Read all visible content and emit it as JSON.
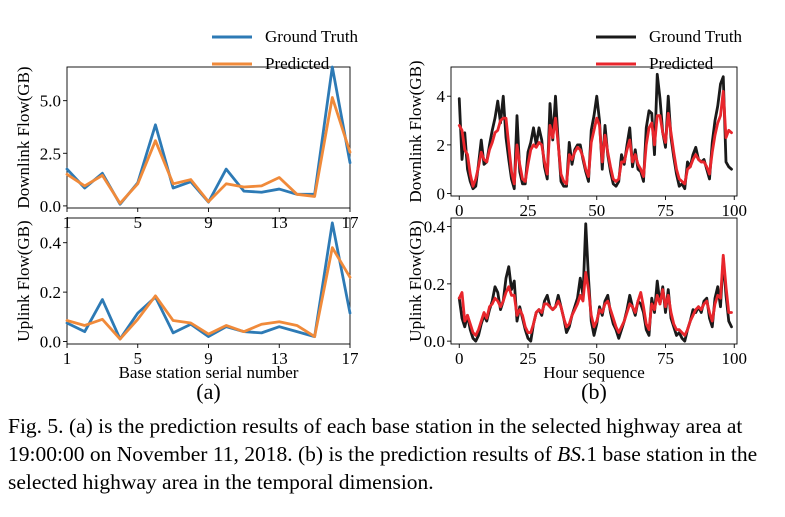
{
  "caption": {
    "label": "Fig. 5.",
    "text_1": "(a) is the prediction results of each base station in the selected highway area at 19:00:00 on November 11, 2018. (b) is the prediction results of",
    "math": "BS.",
    "math_num": "1",
    "text_2": "base station in the selected highway area in the temporal dimension."
  },
  "colors": {
    "gt_a": "#2d7ab5",
    "pred_a": "#f08a3a",
    "gt_b": "#1a1a1a",
    "pred_b": "#e8262c"
  },
  "chart_data": [
    {
      "id": "a-top",
      "type": "line",
      "ylabel": "Downlink Flow(GB)",
      "xlabel": "",
      "xlim": [
        1,
        17
      ],
      "ylim": [
        -0.1,
        6.6
      ],
      "xticks": [
        "1",
        "5",
        "9",
        "13",
        "17"
      ],
      "yticks": [
        "0.0",
        "2.5",
        "5.0"
      ],
      "legend": {
        "position": "top-right-outside",
        "entries": [
          "Ground Truth",
          "Predicted"
        ]
      },
      "x": [
        1,
        2,
        3,
        4,
        5,
        6,
        7,
        8,
        9,
        10,
        11,
        12,
        13,
        14,
        15,
        16,
        17
      ],
      "series": [
        {
          "name": "Ground Truth",
          "color_key": "gt_a",
          "values": [
            1.75,
            0.85,
            1.55,
            0.08,
            1.1,
            3.85,
            0.85,
            1.15,
            0.18,
            1.75,
            0.7,
            0.65,
            0.8,
            0.55,
            0.55,
            6.6,
            2.05
          ]
        },
        {
          "name": "Predicted",
          "color_key": "pred_a",
          "values": [
            1.5,
            0.95,
            1.45,
            0.12,
            1.05,
            3.1,
            1.05,
            1.25,
            0.2,
            1.05,
            0.9,
            0.95,
            1.35,
            0.55,
            0.45,
            5.15,
            2.55
          ]
        }
      ]
    },
    {
      "id": "a-bottom",
      "type": "line",
      "ylabel": "Uplink Flow(GB)",
      "xlabel": "Base station serial number",
      "panel_label": "(a)",
      "xlim": [
        1,
        17
      ],
      "ylim": [
        -0.01,
        0.5
      ],
      "xticks": [
        "1",
        "5",
        "9",
        "13",
        "17"
      ],
      "yticks": [
        "0.0",
        "0.2",
        "0.4"
      ],
      "x": [
        1,
        2,
        3,
        4,
        5,
        6,
        7,
        8,
        9,
        10,
        11,
        12,
        13,
        14,
        15,
        16,
        17
      ],
      "series": [
        {
          "name": "Ground Truth",
          "color_key": "gt_a",
          "values": [
            0.075,
            0.04,
            0.17,
            0.01,
            0.115,
            0.18,
            0.035,
            0.07,
            0.02,
            0.06,
            0.04,
            0.035,
            0.06,
            0.04,
            0.02,
            0.48,
            0.115
          ]
        },
        {
          "name": "Predicted",
          "color_key": "pred_a",
          "values": [
            0.085,
            0.065,
            0.09,
            0.01,
            0.09,
            0.185,
            0.085,
            0.075,
            0.03,
            0.065,
            0.04,
            0.07,
            0.08,
            0.065,
            0.02,
            0.38,
            0.26
          ]
        }
      ]
    },
    {
      "id": "b-top",
      "type": "line",
      "ylabel": "Downlink Flow(GB)",
      "xlabel": "",
      "xlim": [
        -3,
        101
      ],
      "ylim": [
        -0.1,
        5.2
      ],
      "xticks": [
        "0",
        "25",
        "50",
        "75",
        "100"
      ],
      "yticks": [
        "0",
        "2",
        "4"
      ],
      "legend": {
        "position": "top-right-outside",
        "entries": [
          "Ground Truth",
          "Predicted"
        ]
      },
      "x_start": 0,
      "x_step": 1,
      "series": [
        {
          "name": "Ground Truth",
          "color_key": "gt_b",
          "values": [
            3.9,
            1.4,
            2.5,
            1.0,
            0.5,
            0.2,
            0.3,
            1.2,
            2.2,
            1.2,
            1.3,
            2.0,
            2.6,
            3.1,
            3.8,
            2.9,
            4.0,
            2.3,
            1.4,
            0.6,
            0.2,
            3.2,
            0.9,
            0.4,
            0.4,
            1.7,
            2.1,
            2.7,
            2.0,
            2.7,
            2.2,
            1.1,
            0.6,
            3.7,
            2.2,
            4.0,
            2.1,
            0.5,
            0.3,
            0.3,
            2.1,
            1.2,
            1.8,
            2.0,
            2.0,
            1.4,
            0.9,
            0.5,
            2.6,
            3.2,
            4.0,
            3.0,
            1.0,
            2.8,
            1.6,
            0.9,
            0.4,
            0.3,
            0.5,
            1.6,
            1.2,
            2.0,
            2.7,
            1.1,
            1.8,
            1.0,
            0.9,
            0.5,
            2.7,
            3.4,
            3.3,
            1.6,
            4.9,
            3.9,
            2.5,
            1.9,
            4.0,
            2.3,
            1.5,
            0.8,
            0.3,
            0.4,
            0.2,
            1.3,
            1.1,
            1.6,
            1.9,
            1.4,
            1.3,
            1.4,
            1.0,
            0.6,
            2.1,
            3.0,
            3.6,
            4.5,
            4.8,
            1.3,
            1.1,
            1.0
          ]
        },
        {
          "name": "Predicted",
          "color_key": "pred_b",
          "values": [
            2.8,
            2.6,
            1.8,
            1.6,
            0.8,
            0.3,
            0.6,
            1.1,
            1.7,
            1.4,
            1.3,
            1.8,
            2.1,
            2.5,
            2.6,
            3.0,
            3.1,
            3.1,
            2.0,
            0.9,
            0.4,
            2.0,
            1.2,
            0.6,
            0.5,
            1.2,
            1.8,
            2.0,
            1.9,
            2.1,
            2.0,
            1.3,
            0.8,
            2.8,
            2.3,
            3.1,
            2.0,
            0.8,
            0.5,
            0.4,
            1.6,
            1.4,
            1.7,
            1.9,
            1.8,
            1.5,
            1.0,
            0.7,
            2.1,
            2.6,
            3.1,
            2.8,
            1.3,
            2.4,
            1.7,
            1.1,
            0.6,
            0.5,
            0.6,
            1.3,
            1.3,
            1.8,
            2.2,
            1.3,
            1.6,
            1.2,
            1.0,
            0.7,
            2.0,
            2.7,
            2.9,
            2.0,
            3.2,
            3.2,
            2.5,
            2.1,
            3.3,
            2.5,
            1.7,
            1.0,
            0.6,
            0.5,
            0.4,
            1.0,
            1.1,
            1.4,
            1.6,
            1.4,
            1.3,
            1.3,
            1.1,
            0.8,
            1.7,
            2.4,
            2.9,
            3.2,
            4.2,
            2.3,
            2.6,
            2.5
          ]
        }
      ]
    },
    {
      "id": "b-bottom",
      "type": "line",
      "ylabel": "Uplink Flow(GB)",
      "xlabel": "Hour sequence",
      "panel_label": "(b)",
      "xlim": [
        -3,
        101
      ],
      "ylim": [
        -0.01,
        0.43
      ],
      "xticks": [
        "0",
        "25",
        "50",
        "75",
        "100"
      ],
      "yticks": [
        "0.0",
        "0.2",
        "0.4"
      ],
      "x_start": 0,
      "x_step": 1,
      "series": [
        {
          "name": "Ground Truth",
          "color_key": "gt_b",
          "values": [
            0.15,
            0.08,
            0.05,
            0.09,
            0.04,
            0.01,
            0.0,
            0.02,
            0.06,
            0.09,
            0.07,
            0.11,
            0.14,
            0.19,
            0.17,
            0.11,
            0.14,
            0.22,
            0.26,
            0.18,
            0.21,
            0.07,
            0.12,
            0.08,
            0.04,
            0.01,
            0.0,
            0.06,
            0.1,
            0.11,
            0.09,
            0.14,
            0.16,
            0.12,
            0.11,
            0.12,
            0.16,
            0.12,
            0.08,
            0.03,
            0.05,
            0.09,
            0.12,
            0.15,
            0.22,
            0.16,
            0.41,
            0.22,
            0.07,
            0.02,
            0.06,
            0.12,
            0.09,
            0.14,
            0.16,
            0.1,
            0.06,
            0.04,
            0.01,
            0.04,
            0.07,
            0.11,
            0.16,
            0.12,
            0.09,
            0.14,
            0.13,
            0.1,
            0.04,
            0.02,
            0.15,
            0.1,
            0.21,
            0.13,
            0.19,
            0.1,
            0.18,
            0.08,
            0.05,
            0.02,
            0.03,
            0.01,
            0.0,
            0.04,
            0.07,
            0.11,
            0.1,
            0.12,
            0.1,
            0.14,
            0.15,
            0.08,
            0.05,
            0.15,
            0.19,
            0.12,
            0.29,
            0.16,
            0.07,
            0.05
          ]
        },
        {
          "name": "Predicted",
          "color_key": "pred_b",
          "values": [
            0.15,
            0.17,
            0.07,
            0.09,
            0.06,
            0.03,
            0.02,
            0.04,
            0.07,
            0.1,
            0.08,
            0.12,
            0.13,
            0.15,
            0.14,
            0.12,
            0.14,
            0.17,
            0.19,
            0.16,
            0.16,
            0.09,
            0.11,
            0.09,
            0.05,
            0.03,
            0.03,
            0.06,
            0.1,
            0.11,
            0.1,
            0.13,
            0.13,
            0.12,
            0.11,
            0.12,
            0.14,
            0.12,
            0.08,
            0.05,
            0.06,
            0.09,
            0.11,
            0.13,
            0.16,
            0.14,
            0.24,
            0.18,
            0.09,
            0.05,
            0.07,
            0.11,
            0.1,
            0.13,
            0.14,
            0.11,
            0.08,
            0.05,
            0.03,
            0.05,
            0.07,
            0.1,
            0.13,
            0.12,
            0.1,
            0.14,
            0.17,
            0.12,
            0.06,
            0.04,
            0.13,
            0.11,
            0.16,
            0.13,
            0.18,
            0.12,
            0.16,
            0.1,
            0.06,
            0.04,
            0.04,
            0.03,
            0.02,
            0.04,
            0.07,
            0.09,
            0.11,
            0.12,
            0.11,
            0.13,
            0.14,
            0.1,
            0.07,
            0.13,
            0.16,
            0.15,
            0.3,
            0.19,
            0.1,
            0.1
          ]
        }
      ]
    }
  ]
}
